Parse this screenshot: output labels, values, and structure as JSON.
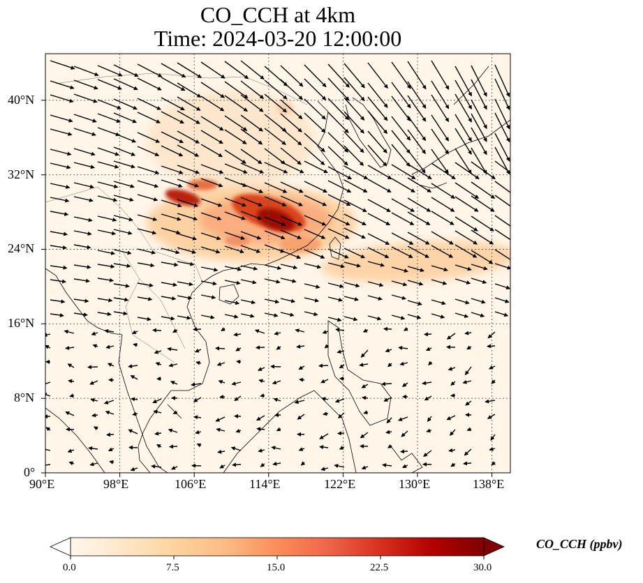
{
  "title": {
    "line1": "CO_CCH at 4km",
    "line2": "Time: 2024-03-20 12:00:00"
  },
  "map": {
    "lon_range": [
      90,
      140
    ],
    "lat_range": [
      0,
      45
    ],
    "x_ticks": [
      "90°E",
      "98°E",
      "106°E",
      "114°E",
      "122°E",
      "130°E",
      "138°E"
    ],
    "y_ticks": [
      "0°",
      "8°N",
      "16°N",
      "24°N",
      "32°N",
      "40°N"
    ],
    "gridlines": "dotted",
    "field": "CO_CCH",
    "plume_peak_region": "South China near 114°E, 28°N",
    "wind_vectors": true
  },
  "colorbar": {
    "label": "CO_CCH (ppbv)",
    "ticks": [
      "0.0",
      "7.5",
      "15.0",
      "22.5",
      "30.0"
    ],
    "range": [
      0,
      30
    ],
    "extend": "both",
    "colormap": [
      "#fff7ec",
      "#fee8c8",
      "#fdd49e",
      "#fdbb84",
      "#fc8d59",
      "#ef6548",
      "#d7301f",
      "#b30000",
      "#7f0000"
    ]
  }
}
